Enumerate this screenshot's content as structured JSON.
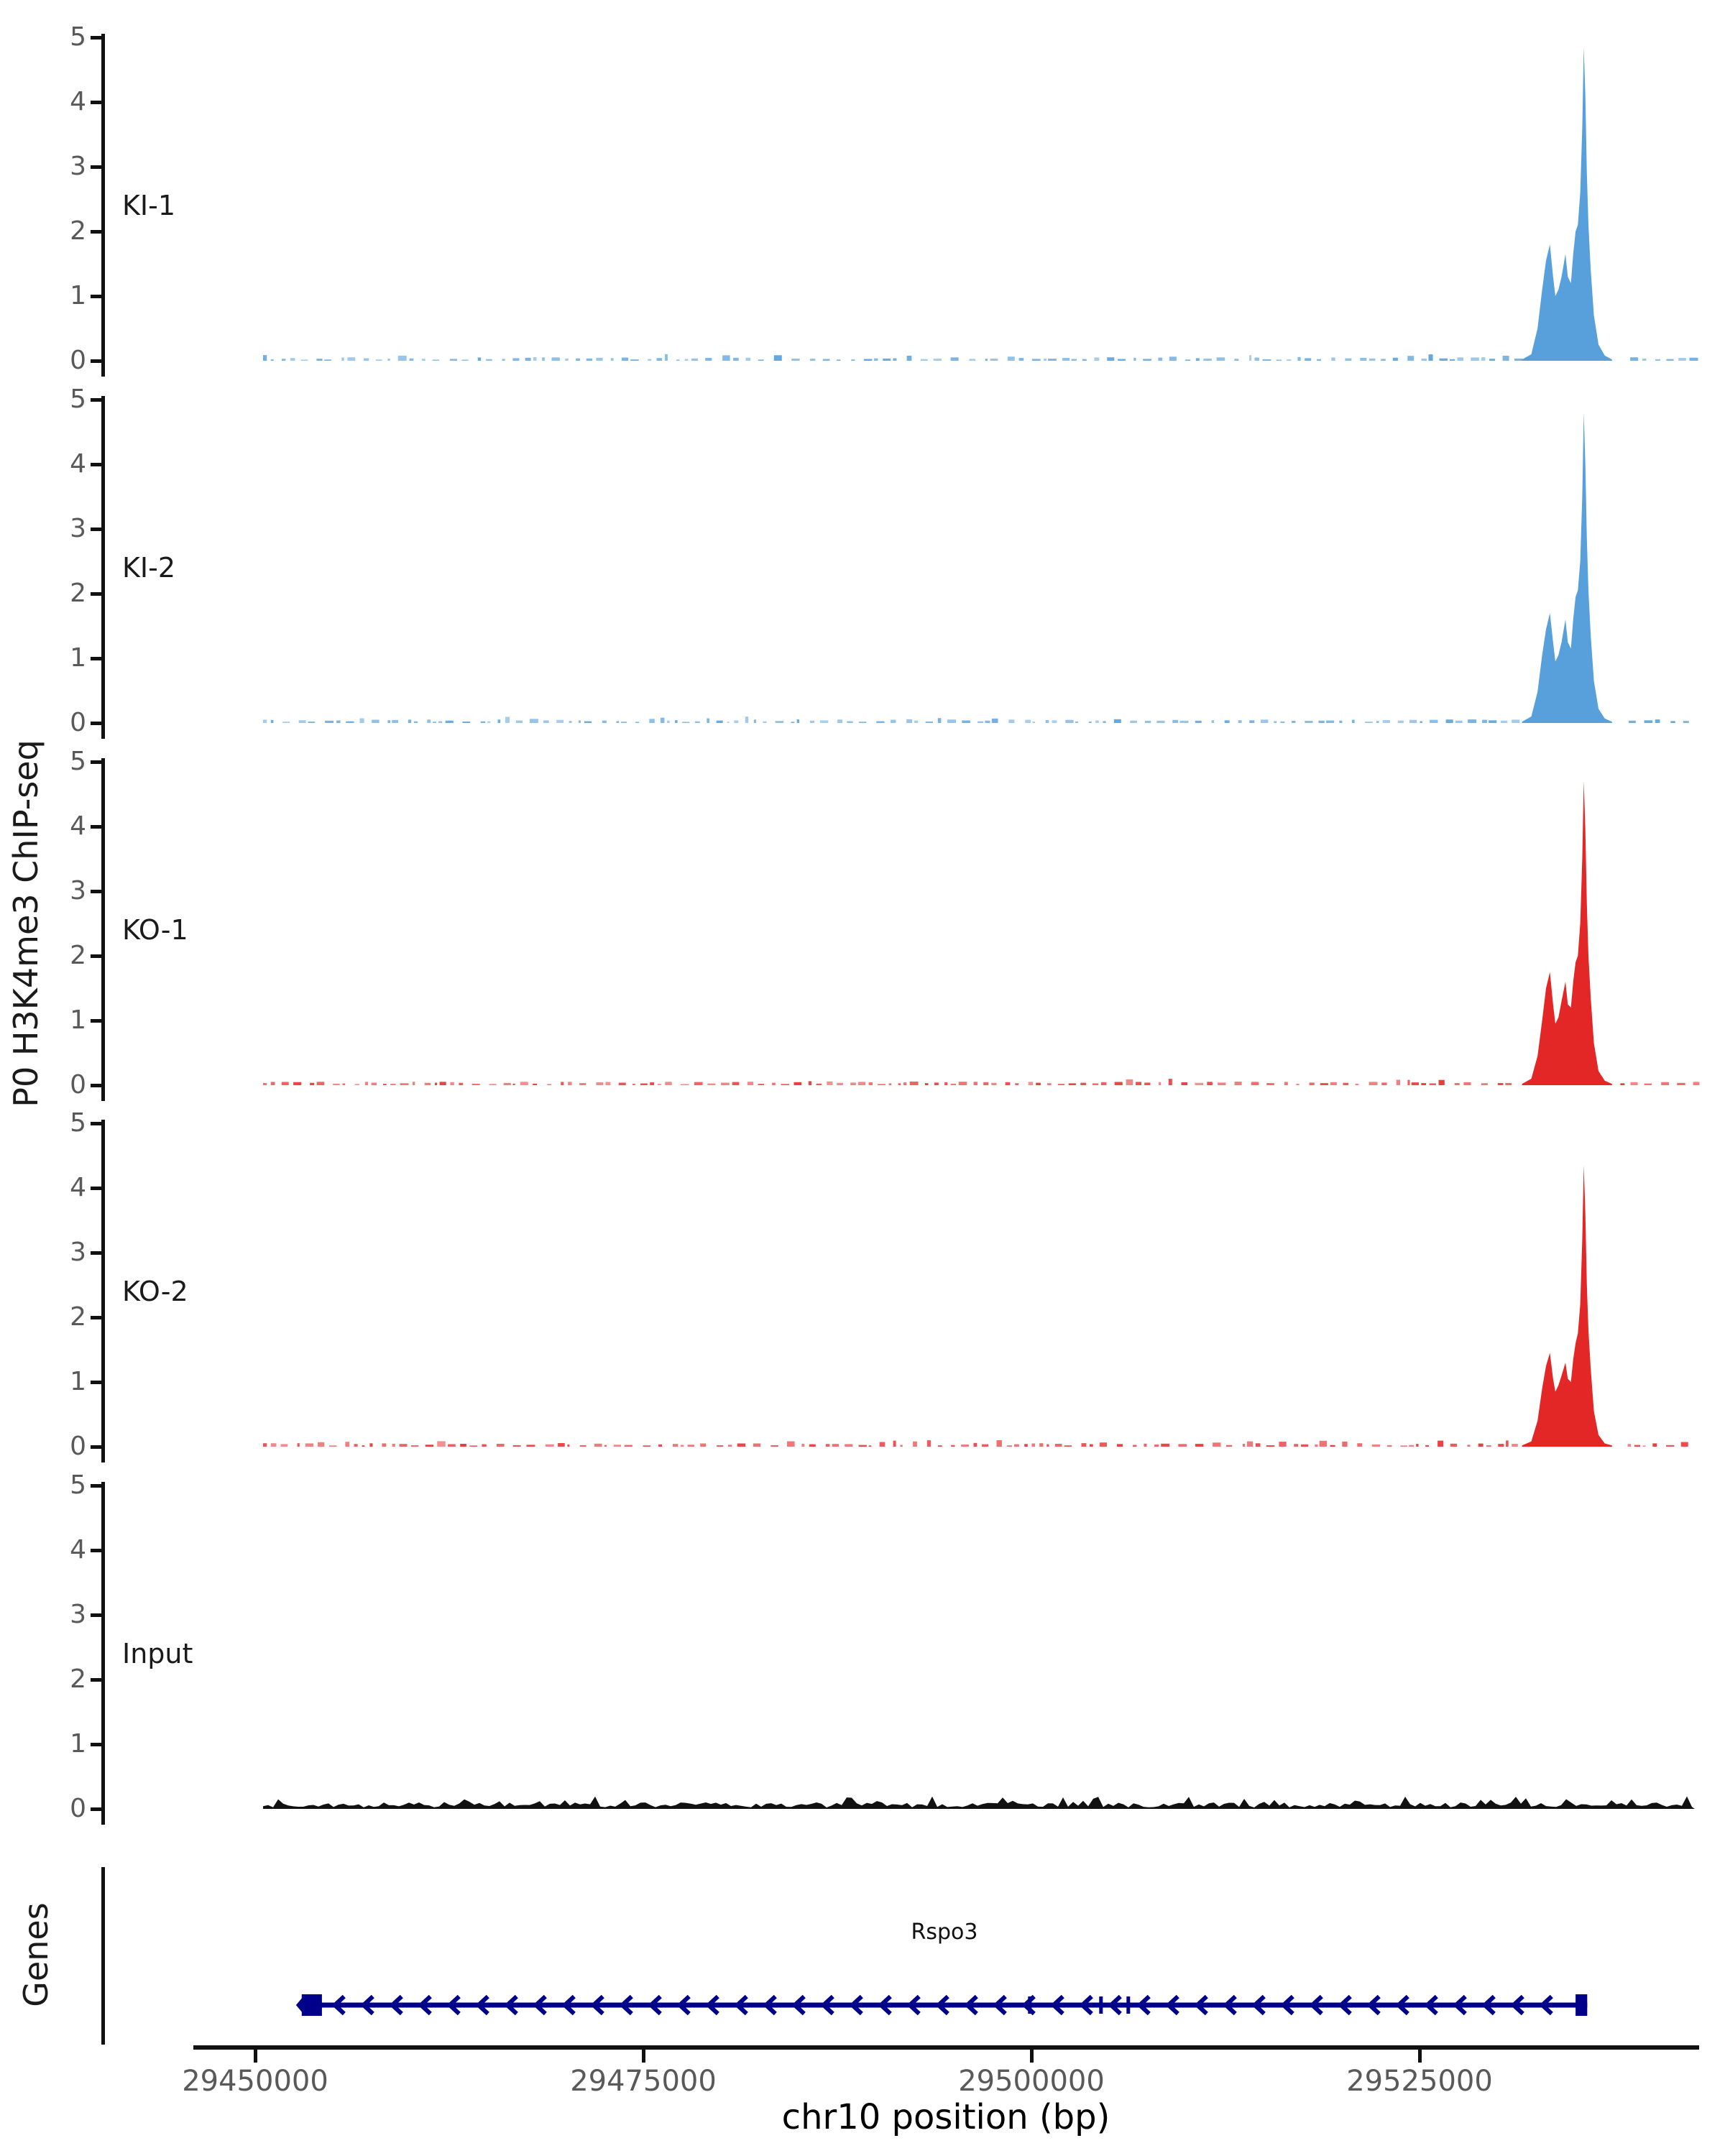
{
  "figure": {
    "y_group_label": "P0 H3K4me3 ChIP-seq",
    "genes_group_label": "Genes"
  },
  "x_axis": {
    "title": "chr10 position (bp)",
    "tick_labels": [
      "29450000",
      "29475000",
      "29500000",
      "29525000"
    ],
    "tick_positions_bp": [
      29450000,
      29475000,
      29500000,
      29525000
    ],
    "range_bp": [
      29446000,
      29543000
    ]
  },
  "chart_data": {
    "type": "area",
    "title": "",
    "xlabel": "chr10 position (bp)",
    "ylabel": "P0 H3K4me3 ChIP-seq",
    "x_range_bp": [
      29446000,
      29543000
    ],
    "grid": false,
    "tracks": [
      {
        "name": "ki-1",
        "label": "KI-1",
        "color": "#57A0DB",
        "ylim": [
          0,
          5
        ],
        "yticks": [
          0,
          1,
          2,
          3,
          4,
          5
        ],
        "peak_bp_value": [
          [
            29531600,
            0.02
          ],
          [
            29532200,
            0.1
          ],
          [
            29532600,
            0.5
          ],
          [
            29532900,
            1.1
          ],
          [
            29533150,
            1.55
          ],
          [
            29533400,
            1.8
          ],
          [
            29533600,
            1.3
          ],
          [
            29533750,
            1.0
          ],
          [
            29533950,
            1.1
          ],
          [
            29534150,
            1.3
          ],
          [
            29534400,
            1.65
          ],
          [
            29534550,
            1.3
          ],
          [
            29534750,
            1.2
          ],
          [
            29534900,
            1.65
          ],
          [
            29535050,
            2.0
          ],
          [
            29535200,
            2.1
          ],
          [
            29535350,
            2.6
          ],
          [
            29535480,
            3.6
          ],
          [
            29535580,
            4.85
          ],
          [
            29535680,
            4.1
          ],
          [
            29535780,
            2.9
          ],
          [
            29535880,
            2.1
          ],
          [
            29536030,
            1.4
          ],
          [
            29536230,
            0.7
          ],
          [
            29536530,
            0.25
          ],
          [
            29536930,
            0.08
          ],
          [
            29537400,
            0.02
          ]
        ],
        "noise": {
          "style": "sparse-dashes",
          "max_value": 0.12,
          "seed": 11
        }
      },
      {
        "name": "ki-2",
        "label": "KI-2",
        "color": "#57A0DB",
        "ylim": [
          0,
          5
        ],
        "yticks": [
          0,
          1,
          2,
          3,
          4,
          5
        ],
        "peak_bp_value": [
          [
            29531600,
            0.02
          ],
          [
            29532200,
            0.1
          ],
          [
            29532600,
            0.48
          ],
          [
            29532900,
            1.05
          ],
          [
            29533150,
            1.45
          ],
          [
            29533400,
            1.7
          ],
          [
            29533600,
            1.25
          ],
          [
            29533750,
            0.95
          ],
          [
            29533950,
            1.05
          ],
          [
            29534150,
            1.25
          ],
          [
            29534400,
            1.6
          ],
          [
            29534550,
            1.25
          ],
          [
            29534750,
            1.15
          ],
          [
            29534900,
            1.6
          ],
          [
            29535050,
            1.95
          ],
          [
            29535200,
            2.05
          ],
          [
            29535350,
            2.5
          ],
          [
            29535480,
            3.5
          ],
          [
            29535580,
            4.8
          ],
          [
            29535680,
            4.0
          ],
          [
            29535780,
            2.85
          ],
          [
            29535880,
            2.05
          ],
          [
            29536030,
            1.35
          ],
          [
            29536230,
            0.65
          ],
          [
            29536530,
            0.22
          ],
          [
            29536930,
            0.07
          ],
          [
            29537400,
            0.02
          ]
        ],
        "noise": {
          "style": "sparse-dashes",
          "max_value": 0.12,
          "seed": 22
        }
      },
      {
        "name": "ko-1",
        "label": "KO-1",
        "color": "#E32726",
        "ylim": [
          0,
          5
        ],
        "yticks": [
          0,
          1,
          2,
          3,
          4,
          5
        ],
        "peak_bp_value": [
          [
            29531600,
            0.02
          ],
          [
            29532200,
            0.1
          ],
          [
            29532600,
            0.45
          ],
          [
            29532900,
            1.0
          ],
          [
            29533150,
            1.5
          ],
          [
            29533400,
            1.75
          ],
          [
            29533600,
            1.25
          ],
          [
            29533750,
            0.95
          ],
          [
            29533950,
            1.05
          ],
          [
            29534150,
            1.3
          ],
          [
            29534400,
            1.6
          ],
          [
            29534550,
            1.25
          ],
          [
            29534750,
            1.2
          ],
          [
            29534900,
            1.6
          ],
          [
            29535050,
            1.9
          ],
          [
            29535200,
            2.0
          ],
          [
            29535350,
            2.5
          ],
          [
            29535480,
            3.5
          ],
          [
            29535580,
            4.7
          ],
          [
            29535680,
            3.95
          ],
          [
            29535780,
            2.8
          ],
          [
            29535880,
            2.0
          ],
          [
            29536030,
            1.35
          ],
          [
            29536230,
            0.65
          ],
          [
            29536530,
            0.22
          ],
          [
            29536930,
            0.07
          ],
          [
            29537400,
            0.02
          ]
        ],
        "noise": {
          "style": "sparse-dashes",
          "max_value": 0.1,
          "seed": 33
        }
      },
      {
        "name": "ko-2",
        "label": "KO-2",
        "color": "#E32726",
        "ylim": [
          0,
          5
        ],
        "yticks": [
          0,
          1,
          2,
          3,
          4,
          5
        ],
        "peak_bp_value": [
          [
            29531600,
            0.02
          ],
          [
            29532200,
            0.08
          ],
          [
            29532600,
            0.4
          ],
          [
            29532900,
            0.9
          ],
          [
            29533150,
            1.25
          ],
          [
            29533400,
            1.45
          ],
          [
            29533600,
            1.05
          ],
          [
            29533750,
            0.85
          ],
          [
            29533950,
            0.95
          ],
          [
            29534150,
            1.1
          ],
          [
            29534400,
            1.3
          ],
          [
            29534550,
            1.05
          ],
          [
            29534750,
            1.0
          ],
          [
            29534900,
            1.35
          ],
          [
            29535050,
            1.6
          ],
          [
            29535200,
            1.75
          ],
          [
            29535350,
            2.2
          ],
          [
            29535480,
            3.2
          ],
          [
            29535580,
            4.35
          ],
          [
            29535680,
            3.6
          ],
          [
            29535780,
            2.5
          ],
          [
            29535880,
            1.8
          ],
          [
            29536030,
            1.2
          ],
          [
            29536230,
            0.55
          ],
          [
            29536530,
            0.18
          ],
          [
            29536930,
            0.05
          ],
          [
            29537400,
            0.02
          ]
        ],
        "noise": {
          "style": "sparse-dashes",
          "max_value": 0.1,
          "seed": 44
        }
      },
      {
        "name": "input",
        "label": "Input",
        "color": "#111111",
        "ylim": [
          0,
          5
        ],
        "yticks": [
          0,
          1,
          2,
          3,
          4,
          5
        ],
        "peak_bp_value": [],
        "noise": {
          "style": "continuous",
          "max_value": 0.22,
          "seed": 55
        }
      }
    ],
    "gene": {
      "label": "Rspo3",
      "strand": "-",
      "start_bp": 29453000,
      "end_bp": 29535800,
      "color": "#00008B",
      "exon_boxes_bp": [
        [
          29453000,
          29454300
        ],
        [
          29535050,
          29535800
        ]
      ],
      "exon_bars_bp": [
        29499900,
        29504480,
        29506240
      ],
      "arrow_direction": "left"
    }
  }
}
